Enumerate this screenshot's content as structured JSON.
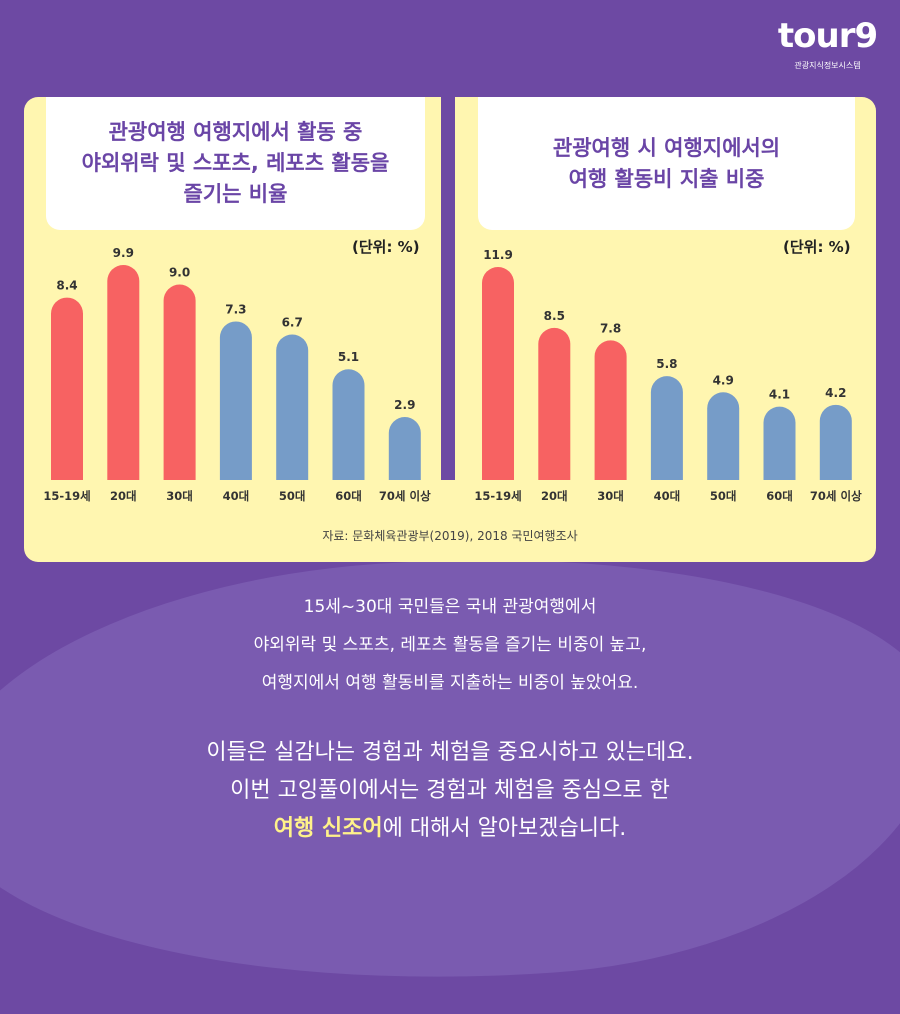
{
  "logo": {
    "word": "tour9",
    "sub": "관광지식정보시스템"
  },
  "colors": {
    "background": "#6d49a3",
    "panel": "#fff6b0",
    "highlight_bar": "#f76262",
    "normal_bar": "#769cc8",
    "title": "#6a45a6"
  },
  "chart_data": [
    {
      "type": "bar",
      "title": "관광여행 여행지에서 활동 중\n야외위락 및 스포츠, 레포츠 활동을\n즐기는 비율",
      "unit": "(단위: %)",
      "categories": [
        "15-19세",
        "20대",
        "30대",
        "40대",
        "50대",
        "60대",
        "70세 이상"
      ],
      "values": [
        8.4,
        9.9,
        9.0,
        7.3,
        6.7,
        5.1,
        2.9
      ],
      "value_labels": [
        "8.4",
        "9.9",
        "9.0",
        "7.3",
        "6.7",
        "5.1",
        "2.9"
      ],
      "highlighted": [
        true,
        true,
        true,
        false,
        false,
        false,
        false
      ],
      "ylim": [
        0,
        9.9
      ],
      "grid": false
    },
    {
      "type": "bar",
      "title": "관광여행 시 여행지에서의\n여행 활동비 지출 비중",
      "unit": "(단위: %)",
      "categories": [
        "15-19세",
        "20대",
        "30대",
        "40대",
        "50대",
        "60대",
        "70세 이상"
      ],
      "values": [
        11.9,
        8.5,
        7.8,
        5.8,
        4.9,
        4.1,
        4.2
      ],
      "value_labels": [
        "11.9",
        "8.5",
        "7.8",
        "5.8",
        "4.9",
        "4.1",
        "4.2"
      ],
      "highlighted": [
        true,
        true,
        true,
        false,
        false,
        false,
        false
      ],
      "ylim": [
        0,
        11.9
      ],
      "grid": false
    }
  ],
  "source": "자료: 문화체육관광부(2019), 2018 국민여행조사",
  "description": [
    "15세~30대 국민들은 국내 관광여행에서",
    "야외위락 및 스포츠, 레포츠 활동을 즐기는 비중이 높고,",
    "여행지에서 여행 활동비를 지출하는 비중이 높았어요."
  ],
  "message": {
    "line1": "이들은 실감나는 경험과 체험을 중요시하고 있는데요.",
    "line2": "이번 고잉풀이에서는 경험과 체험을 중심으로 한",
    "highlight": "여행 신조어",
    "line3_rest": "에 대해서 알아보겠습니다."
  }
}
